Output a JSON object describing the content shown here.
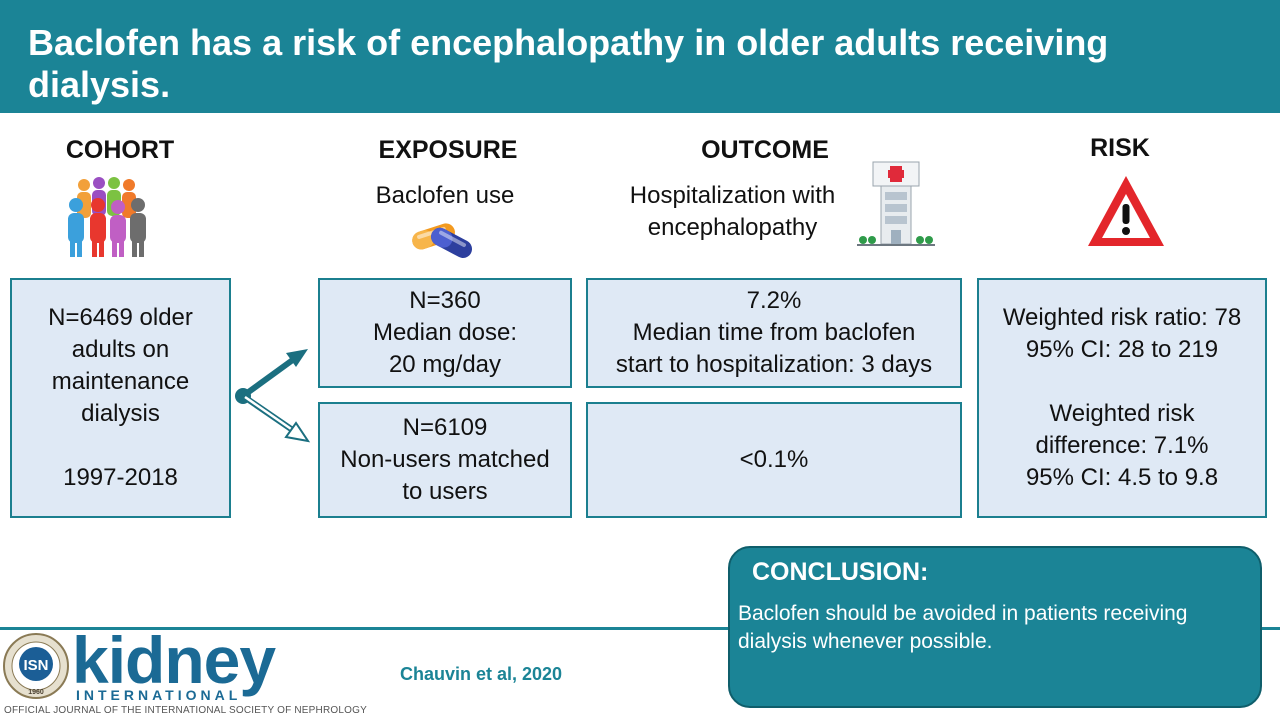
{
  "header": {
    "title": "Baclofen has a risk of encephalopathy in older adults receiving dialysis."
  },
  "columns": {
    "cohort": {
      "heading": "COHORT",
      "box_lines": [
        "N=6469 older",
        "adults on",
        "maintenance",
        "dialysis",
        "",
        "1997-2018"
      ]
    },
    "exposure": {
      "heading": "EXPOSURE",
      "subtitle": "Baclofen use",
      "users_lines": [
        "N=360",
        "Median dose:",
        "20 mg/day"
      ],
      "nonusers_lines": [
        "N=6109",
        "Non-users matched",
        "to users"
      ]
    },
    "outcome": {
      "heading": "OUTCOME",
      "subtitle_lines": [
        "Hospitalization with",
        "encephalopathy"
      ],
      "users_lines": [
        "7.2%",
        "Median time from baclofen",
        "start to hospitalization: 3 days"
      ],
      "nonusers_value": "<0.1%"
    },
    "risk": {
      "heading": "RISK",
      "box_lines": [
        "Weighted risk ratio: 78",
        "95% CI: 28 to 219",
        "",
        "Weighted risk",
        "difference: 7.1%",
        "95% CI: 4.5 to 9.8"
      ]
    }
  },
  "conclusion": {
    "heading": "CONCLUSION:",
    "text": "Baclofen should be avoided in patients receiving dialysis whenever possible."
  },
  "citation": "Chauvin et al, 2020",
  "logo": {
    "seal_text": "ISN",
    "seal_year": "1960",
    "brand": "kidney",
    "brand_sub": "INTERNATIONAL",
    "tagline": "OFFICIAL JOURNAL OF THE INTERNATIONAL SOCIETY OF NEPHROLOGY"
  },
  "colors": {
    "teal": "#1b8496",
    "box_fill": "#dfe9f5",
    "warning_red": "#e3262b",
    "brand_blue": "#1b6a95"
  },
  "icons": [
    "people-group-icon",
    "capsule-icon",
    "hospital-icon",
    "warning-icon",
    "isn-seal-icon"
  ]
}
